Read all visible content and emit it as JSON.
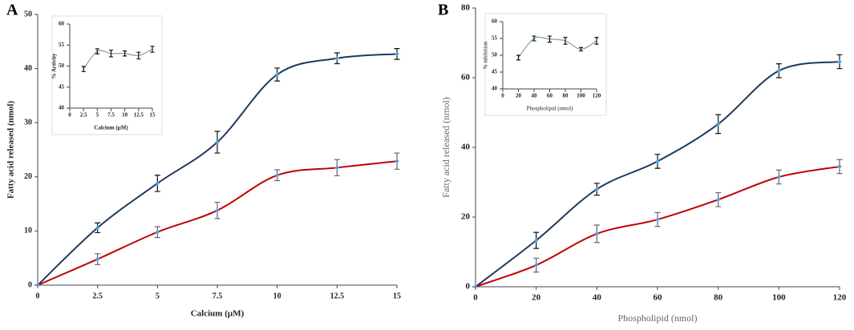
{
  "chart_data": [
    {
      "type": "line",
      "panel_label": "A",
      "xlabel": "Calcium (µM)",
      "ylabel": "Fatty acid released (nmol)",
      "x": [
        0,
        2.5,
        5,
        7.5,
        10,
        12.5,
        15
      ],
      "series": [
        {
          "color": "#1f3a5f",
          "values": [
            0,
            10.6,
            18.8,
            26.4,
            38.9,
            41.9,
            42.7
          ],
          "errors": [
            0,
            0.9,
            1.5,
            2,
            1.2,
            1,
            1
          ]
        },
        {
          "color": "#c00000",
          "values": [
            0,
            4.8,
            9.8,
            13.8,
            20.3,
            21.7,
            22.9
          ],
          "errors": [
            0,
            1,
            1,
            1.5,
            1,
            1.5,
            1.5
          ]
        }
      ],
      "marker_color": "#4aa3df",
      "xlim": [
        0,
        15
      ],
      "xticks": [
        0,
        2.5,
        5,
        7.5,
        10,
        12.5,
        15
      ],
      "ylim": [
        0,
        50
      ],
      "yticks": [
        0,
        10,
        20,
        30,
        40,
        50
      ]
    },
    {
      "type": "line",
      "xlabel": "Calcium (µM)",
      "ylabel": "% Activity",
      "x": [
        2.5,
        5,
        7.5,
        10,
        12.5,
        15
      ],
      "series": [
        {
          "color": "#7f9fb5",
          "values": [
            49.3,
            53.5,
            53,
            53,
            52.5,
            54
          ],
          "errors": [
            0.6,
            0.6,
            0.8,
            0.6,
            0.8,
            0.7
          ]
        }
      ],
      "xlim": [
        0,
        15
      ],
      "xticks": [
        0,
        2.5,
        5,
        7.5,
        10,
        12.5,
        15
      ],
      "ylim": [
        40,
        60
      ],
      "yticks": [
        40,
        45,
        50,
        55,
        60
      ]
    },
    {
      "type": "line",
      "panel_label": "B",
      "xlabel": "Phospholipid (nmol)",
      "ylabel": "Fatty acid released (nmol)",
      "x": [
        0,
        20,
        40,
        60,
        80,
        100,
        120
      ],
      "series": [
        {
          "color": "#1f3a5f",
          "values": [
            0,
            13.3,
            28,
            36,
            46.7,
            62,
            64.6
          ],
          "errors": [
            0,
            2.3,
            1.7,
            2,
            2.7,
            2,
            2
          ]
        },
        {
          "color": "#c00000",
          "values": [
            0,
            6.2,
            15.2,
            19.3,
            25,
            31.5,
            34.5
          ],
          "errors": [
            0,
            2,
            2.5,
            2,
            2,
            2,
            2
          ]
        }
      ],
      "marker_color": "#4aa3df",
      "xlim": [
        0,
        120
      ],
      "xticks": [
        0,
        20,
        40,
        60,
        80,
        100,
        120
      ],
      "ylim": [
        0,
        80
      ],
      "yticks": [
        0,
        20,
        40,
        60,
        80
      ]
    },
    {
      "type": "line",
      "xlabel": "Phospholipid (nmol)",
      "ylabel": "% inhibition",
      "x": [
        20,
        40,
        60,
        80,
        100,
        120
      ],
      "series": [
        {
          "color": "#7f9fb5",
          "values": [
            49.3,
            55,
            54.8,
            54.3,
            51.8,
            54.3
          ],
          "errors": [
            0.7,
            0.7,
            0.9,
            1,
            0.5,
            1
          ]
        }
      ],
      "xlim": [
        0,
        120
      ],
      "xticks": [
        0,
        20,
        40,
        60,
        80,
        100,
        120
      ],
      "ylim": [
        40,
        60
      ],
      "yticks": [
        40,
        45,
        50,
        55,
        60
      ]
    }
  ]
}
